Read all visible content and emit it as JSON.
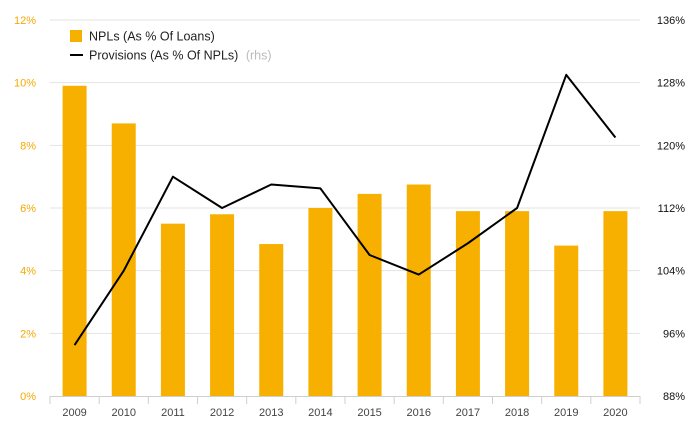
{
  "chart_data": {
    "type": "bar",
    "title": "",
    "xlabel": "",
    "ylabel": "",
    "categories": [
      "2009",
      "2010",
      "2011",
      "2012",
      "2013",
      "2014",
      "2015",
      "2016",
      "2017",
      "2018",
      "2019",
      "2020"
    ],
    "series": [
      {
        "name": "NPLs (As % Of Loans)",
        "type": "bar",
        "axis": "left",
        "color": "#f8b000",
        "values": [
          9.9,
          8.7,
          5.5,
          5.8,
          4.85,
          6.0,
          6.45,
          6.75,
          5.9,
          5.9,
          4.8,
          5.9
        ]
      },
      {
        "name": "Provisions (As % Of NPLs)",
        "type": "line",
        "axis": "right",
        "color": "#000000",
        "values": [
          94.5,
          104,
          116,
          112,
          115,
          114.5,
          106,
          103.5,
          107.5,
          112,
          129,
          121
        ]
      }
    ],
    "legend": {
      "position": "top-left",
      "items": [
        {
          "label": "NPLs (As % Of Loans)",
          "note": ""
        },
        {
          "label": "Provisions (As % Of NPLs)",
          "note": "(rhs)"
        }
      ]
    },
    "y_left": {
      "min": 0,
      "max": 12,
      "ticks": [
        0,
        2,
        4,
        6,
        8,
        10,
        12
      ],
      "tick_labels": [
        "0%",
        "2%",
        "4%",
        "6%",
        "8%",
        "10%",
        "12%"
      ],
      "color": "#f5a800"
    },
    "y_right": {
      "min": 88,
      "max": 136,
      "ticks": [
        88,
        96,
        104,
        112,
        120,
        128,
        136
      ],
      "tick_labels": [
        "88%",
        "96%",
        "104%",
        "112%",
        "120%",
        "128%",
        "136%"
      ],
      "color": "#111111"
    },
    "grid": true
  }
}
